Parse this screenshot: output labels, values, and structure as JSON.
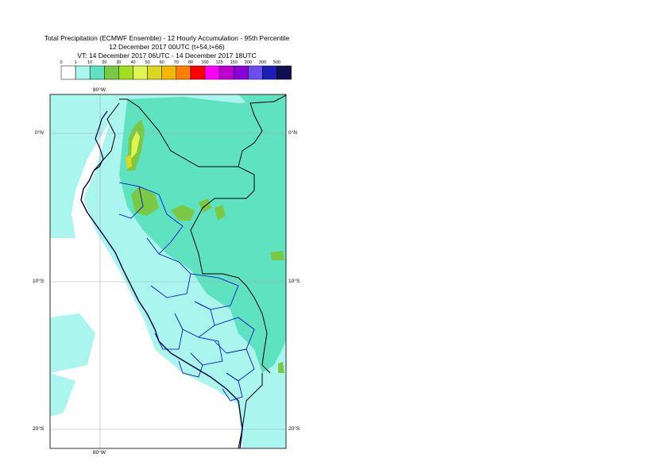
{
  "title": {
    "line1": "Total Precipitation (ECMWF Ensemble) - 12 Hourly Accumulation - 95th Percentile",
    "line2": "12 December 2017 00UTC (t+54,t+66)",
    "line3": "VT: 14 December 2017 06UTC - 14 December 2017 18UTC"
  },
  "legend": {
    "levels": [
      "0",
      "1",
      "10",
      "20",
      "30",
      "40",
      "50",
      "60",
      "70",
      "80",
      "100",
      "125",
      "150",
      "200",
      "300",
      "500"
    ],
    "colors": [
      "#ffffff",
      "#aaf5ee",
      "#5fe2c0",
      "#7ac843",
      "#a0e01e",
      "#e0f550",
      "#dcd61e",
      "#f5b800",
      "#ff8000",
      "#ff0000",
      "#ff00ff",
      "#c000d0",
      "#8a00d8",
      "#6a4ef0",
      "#1e1eb4",
      "#101050"
    ]
  },
  "map": {
    "lon_labels": {
      "top": "80°W",
      "bottom": "80°W"
    },
    "lat_labels": [
      {
        "left": "0°N",
        "right": "0°N"
      },
      {
        "left": "10°S",
        "right": "10°S"
      },
      {
        "left": "20°S",
        "right": "20°S"
      }
    ],
    "colors": {
      "land_boundary": "#000000",
      "admin_boundary": "#0000cc",
      "coast": "#000040",
      "grid": "#aaaaaa"
    }
  }
}
